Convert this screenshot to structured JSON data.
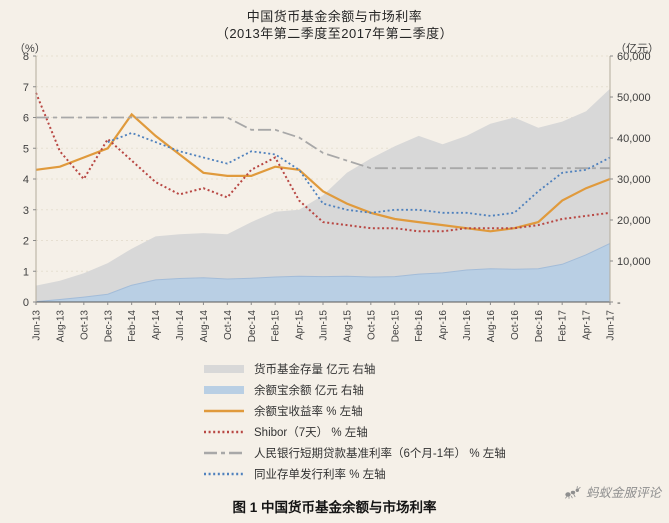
{
  "caption": {
    "text": "图 1  中国货币基金余额与市场利率"
  },
  "watermark": {
    "text": "蚂蚁金服评论",
    "icon": "ant-icon",
    "color": "#8f8f8f"
  },
  "chart_data": {
    "type": "combo-area-line",
    "title": "中国货币基金余额与市场利率",
    "subtitle": "（2013年第二季度至2017年第二季度）",
    "grid": "faint-dashed-horizontal",
    "legend_position": "bottom",
    "x": [
      "Jun-13",
      "Aug-13",
      "Oct-13",
      "Dec-13",
      "Feb-14",
      "Apr-14",
      "Jun-14",
      "Aug-14",
      "Oct-14",
      "Dec-14",
      "Feb-15",
      "Apr-15",
      "Jun-15",
      "Aug-15",
      "Oct-15",
      "Dec-15",
      "Feb-16",
      "Apr-16",
      "Jun-16",
      "Aug-16",
      "Oct-16",
      "Dec-16",
      "Feb-17",
      "Apr-17",
      "Jun-17"
    ],
    "left_axis": {
      "unit": "（%）",
      "min": 0,
      "max": 8,
      "ticks": [
        0,
        1,
        2,
        3,
        4,
        5,
        6,
        7,
        8
      ]
    },
    "right_axis": {
      "unit": "（亿元）",
      "min": 0,
      "max": 60000,
      "ticks": [
        {
          "value": 60000,
          "label": "60,000"
        },
        {
          "value": 50000,
          "label": "50,000"
        },
        {
          "value": 40000,
          "label": "40,000"
        },
        {
          "value": 30000,
          "label": "30,000"
        },
        {
          "value": 20000,
          "label": "20,000"
        },
        {
          "value": 10000,
          "label": "10,000"
        },
        {
          "value": 0,
          "label": "-"
        }
      ]
    },
    "series": [
      {
        "name": "货币基金存量 亿元 右轴",
        "type": "area",
        "axis": "right",
        "color": "#d8d8d8",
        "dash": "solid",
        "width": 0,
        "values": [
          4000,
          5200,
          7000,
          9500,
          13000,
          16000,
          16500,
          16800,
          16500,
          19500,
          22000,
          22500,
          26000,
          31500,
          35000,
          38000,
          40500,
          38500,
          40500,
          43500,
          45000,
          42500,
          44000,
          46500,
          52000
        ]
      },
      {
        "name": "余额宝余额 亿元 右轴",
        "type": "area",
        "axis": "right",
        "color": "#b9cfe4",
        "edge": "#a3bcd8",
        "dash": "solid",
        "width": 0,
        "values": [
          100,
          600,
          1200,
          1900,
          4100,
          5400,
          5740,
          5900,
          5600,
          5800,
          6100,
          6300,
          6200,
          6300,
          6100,
          6200,
          6800,
          7100,
          7800,
          8100,
          8000,
          8100,
          9200,
          11500,
          14300
        ]
      },
      {
        "name": "余额宝收益率 % 左轴",
        "type": "line",
        "axis": "left",
        "color": "#e09a3c",
        "dash": "solid",
        "width": 2.2,
        "values": [
          4.3,
          4.4,
          4.7,
          5.0,
          6.1,
          5.4,
          4.8,
          4.2,
          4.1,
          4.1,
          4.4,
          4.3,
          3.6,
          3.2,
          2.9,
          2.7,
          2.6,
          2.5,
          2.4,
          2.3,
          2.4,
          2.6,
          3.3,
          3.7,
          4.0
        ]
      },
      {
        "name": "Shibor（7天） % 左轴",
        "type": "line",
        "axis": "left",
        "color": "#b84743",
        "dash": "dotted",
        "width": 2,
        "values": [
          6.8,
          4.9,
          4.0,
          5.3,
          4.6,
          3.9,
          3.5,
          3.7,
          3.4,
          4.3,
          4.7,
          3.3,
          2.6,
          2.5,
          2.4,
          2.4,
          2.3,
          2.3,
          2.4,
          2.4,
          2.4,
          2.5,
          2.7,
          2.8,
          2.9
        ]
      },
      {
        "name": "人民银行短期贷款基准利率（6个月-1年） % 左轴",
        "type": "line",
        "axis": "left",
        "color": "#a8a8a8",
        "dash": "dashdot",
        "width": 1.8,
        "values": [
          6.0,
          6.0,
          6.0,
          6.0,
          6.0,
          6.0,
          6.0,
          6.0,
          6.0,
          5.6,
          5.6,
          5.35,
          4.85,
          4.6,
          4.35,
          4.35,
          4.35,
          4.35,
          4.35,
          4.35,
          4.35,
          4.35,
          4.35,
          4.35,
          4.35
        ]
      },
      {
        "name": "同业存单发行利率 % 左轴",
        "type": "line",
        "axis": "left",
        "color": "#4f81bd",
        "dash": "dotted",
        "width": 1.8,
        "values": [
          null,
          null,
          null,
          5.2,
          5.5,
          5.2,
          4.9,
          4.7,
          4.5,
          4.9,
          4.8,
          4.3,
          3.2,
          3.0,
          2.9,
          3.0,
          3.0,
          2.9,
          2.9,
          2.8,
          2.9,
          3.6,
          4.2,
          4.3,
          4.7
        ]
      }
    ]
  }
}
